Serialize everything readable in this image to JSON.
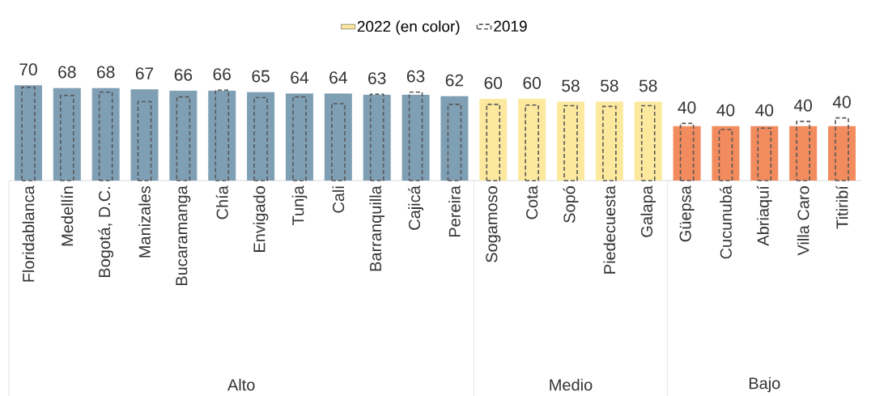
{
  "chart_data": {
    "type": "bar",
    "categories": [
      "Floridablanca",
      "Medellín",
      "Bogotá, D.C.",
      "Manizales",
      "Bucaramanga",
      "Chía",
      "Envigado",
      "Tunja",
      "Cali",
      "Barranquilla",
      "Cajicá",
      "Pereira",
      "Sogamoso",
      "Cota",
      "Sopó",
      "Piedecuesta",
      "Galapa",
      "Güepsa",
      "Cucunubá",
      "Abriaquí",
      "Villa Caro",
      "Titiribí"
    ],
    "series": [
      {
        "name": "2022 (en color)",
        "color": "#fde99e",
        "colors": [
          "#7f9fb5",
          "#7f9fb5",
          "#7f9fb5",
          "#7f9fb5",
          "#7f9fb5",
          "#7f9fb5",
          "#7f9fb5",
          "#7f9fb5",
          "#7f9fb5",
          "#7f9fb5",
          "#7f9fb5",
          "#7f9fb5",
          "#fde99e",
          "#fde99e",
          "#fde99e",
          "#fde99e",
          "#fde99e",
          "#f28b5e",
          "#f28b5e",
          "#f28b5e",
          "#f28b5e",
          "#f28b5e"
        ],
        "values": [
          70,
          68,
          68,
          67,
          66,
          66,
          65,
          64,
          64,
          63,
          63,
          62,
          60,
          60,
          58,
          58,
          58,
          40,
          40,
          40,
          40,
          40
        ],
        "value_labels": [
          "70",
          "68",
          "68",
          "67",
          "66",
          "66",
          "65",
          "64",
          "64",
          "63",
          "63",
          "62",
          "60",
          "60",
          "58",
          "58",
          "58",
          "40",
          "40",
          "40",
          "40",
          "40"
        ]
      },
      {
        "name": "2019",
        "color": "#595959",
        "line_style": "dashed",
        "values": [
          68.5,
          62.5,
          65,
          58,
          61.5,
          66.5,
          61,
          61.5,
          56.5,
          63.5,
          65,
          56,
          56,
          55.5,
          55,
          54.5,
          55,
          42,
          37.5,
          38.5,
          43.5,
          46
        ]
      }
    ],
    "annotations": [
      "Alto",
      "Medio",
      "Bajo"
    ],
    "legend": "top"
  }
}
